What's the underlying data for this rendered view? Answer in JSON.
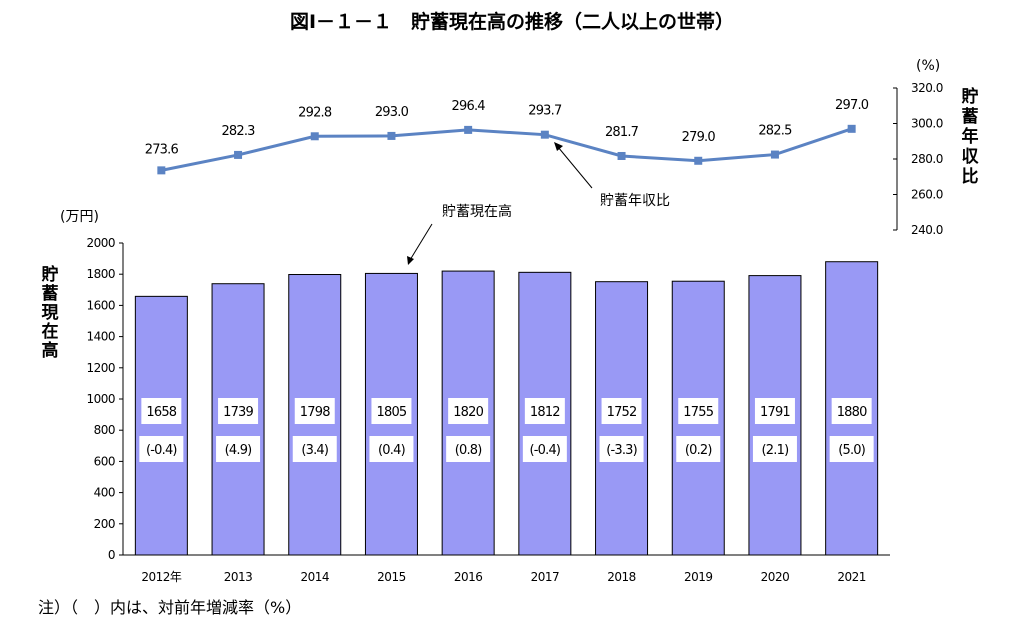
{
  "chart_data": [
    {
      "type": "bar",
      "title": "図Ⅰ－１－１　貯蓄現在高の推移（二人以上の世帯）",
      "categories": [
        "2012年",
        "2013",
        "2014",
        "2015",
        "2016",
        "2017",
        "2018",
        "2019",
        "2020",
        "2021"
      ],
      "values": [
        1658,
        1739,
        1798,
        1805,
        1820,
        1812,
        1752,
        1755,
        1791,
        1880
      ],
      "change_labels": [
        "(-0.4)",
        "(4.9)",
        "(3.4)",
        "(0.4)",
        "(0.8)",
        "(-0.4)",
        "(-3.3)",
        "(0.2)",
        "(2.1)",
        "(5.0)"
      ],
      "ylabel": "貯蓄現在高",
      "yunit": "(万円)",
      "ylim": [
        0,
        2000
      ],
      "yticks": [
        0,
        200,
        400,
        600,
        800,
        1000,
        1200,
        1400,
        1600,
        1800,
        2000
      ],
      "annotation": "貯蓄現在高",
      "bar_color": "#9999f5"
    },
    {
      "type": "line",
      "categories": [
        "2012年",
        "2013",
        "2014",
        "2015",
        "2016",
        "2017",
        "2018",
        "2019",
        "2020",
        "2021"
      ],
      "values": [
        273.6,
        282.3,
        292.8,
        293.0,
        296.4,
        293.7,
        281.7,
        279.0,
        282.5,
        297.0
      ],
      "value_labels": [
        "273.6",
        "282.3",
        "292.8",
        "293.0",
        "296.4",
        "293.7",
        "281.7",
        "279.0",
        "282.5",
        "297.0"
      ],
      "ylabel": "貯蓄年収比",
      "yunit": "(%)",
      "ylim": [
        240,
        320
      ],
      "yticks": [
        "240.0",
        "260.0",
        "280.0",
        "300.0",
        "320.0"
      ],
      "annotation": "貯蓄年収比",
      "line_color": "#5b83c3"
    }
  ],
  "note": "注）（　）内は、対前年増減率（%）"
}
